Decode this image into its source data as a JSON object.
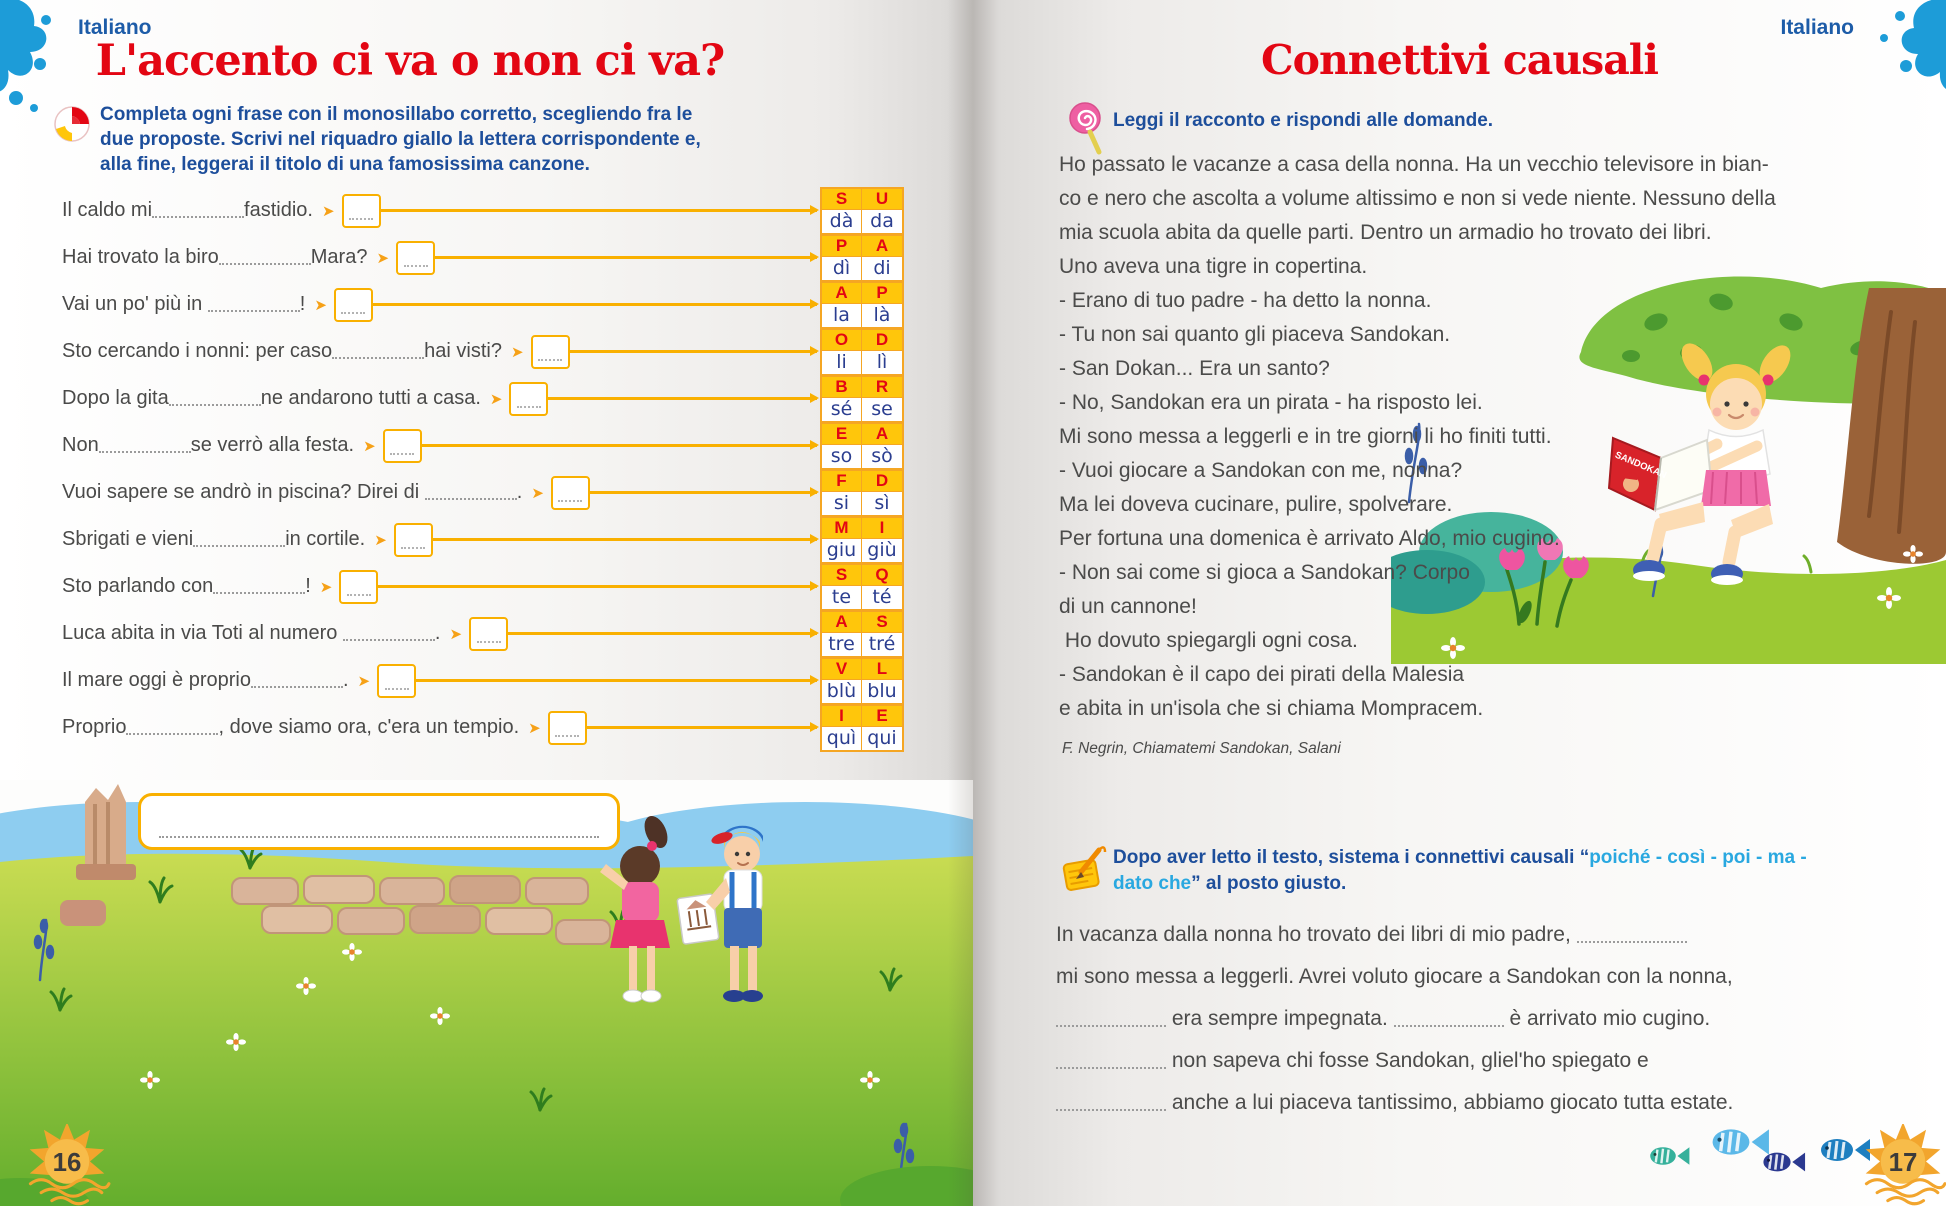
{
  "colors": {
    "red": "#e30613",
    "blue": "#1d4e9b",
    "cyan": "#29a8e0",
    "yellow": "#f9b000",
    "yellow_fill": "#ffc60b",
    "word_blue": "#2b3e90",
    "text_gray": "#4a4a49",
    "splat_blue": "#1d9cd8"
  },
  "left_page": {
    "corner_label": "Italiano",
    "page_number": "16",
    "title": "L'accento ci va o non ci va?",
    "instruction": "Completa ogni frase con il monosillabo corretto, scegliendo fra le due proposte. Scrivi nel riquadro giallo la lettera corrispondente e, alla fine, leggerai il titolo di una famosissima canzone.",
    "exercises": [
      {
        "parts": [
          "Il caldo mi",
          "fastidio."
        ],
        "letters": [
          "S",
          "U"
        ],
        "words": [
          "dà",
          "da"
        ]
      },
      {
        "parts": [
          "Hai trovato la biro",
          "Mara?"
        ],
        "letters": [
          "P",
          "A"
        ],
        "words": [
          "dì",
          "di"
        ]
      },
      {
        "parts": [
          "Vai un po' più in ",
          "!"
        ],
        "letters": [
          "A",
          "P"
        ],
        "words": [
          "la",
          "là"
        ]
      },
      {
        "parts": [
          "Sto cercando i nonni: per caso",
          "hai visti?"
        ],
        "letters": [
          "O",
          "D"
        ],
        "words": [
          "li",
          "lì"
        ]
      },
      {
        "parts": [
          "Dopo la gita",
          "ne andarono tutti a casa."
        ],
        "letters": [
          "B",
          "R"
        ],
        "words": [
          "sé",
          "se"
        ]
      },
      {
        "parts": [
          "Non",
          "se verrò alla festa."
        ],
        "letters": [
          "E",
          "A"
        ],
        "words": [
          "so",
          "sò"
        ]
      },
      {
        "parts": [
          "Vuoi sapere se andrò in piscina? Direi di ",
          "."
        ],
        "letters": [
          "F",
          "D"
        ],
        "words": [
          "si",
          "sì"
        ]
      },
      {
        "parts": [
          "Sbrigati e vieni",
          "in cortile."
        ],
        "letters": [
          "M",
          "I"
        ],
        "words": [
          "giu",
          "giù"
        ]
      },
      {
        "parts": [
          "Sto parlando con",
          "!"
        ],
        "letters": [
          "S",
          "Q"
        ],
        "words": [
          "te",
          "té"
        ]
      },
      {
        "parts": [
          "Luca abita in via Toti al numero ",
          "."
        ],
        "letters": [
          "A",
          "S"
        ],
        "words": [
          "tre",
          "tré"
        ]
      },
      {
        "parts": [
          "Il mare oggi è proprio",
          "."
        ],
        "letters": [
          "V",
          "L"
        ],
        "words": [
          "blù",
          "blu"
        ]
      },
      {
        "parts": [
          "Proprio",
          ", dove siamo ora, c'era un tempio."
        ],
        "letters": [
          "I",
          "E"
        ],
        "words": [
          "quì",
          "qui"
        ]
      }
    ]
  },
  "right_page": {
    "corner_label": "Italiano",
    "page_number": "17",
    "title": "Connettivi causali",
    "instruction1": "Leggi il racconto e rispondi alle domande.",
    "story_lines": [
      "Ho passato le vacanze a casa della nonna. Ha un vecchio televisore in bian-",
      "co e nero che ascolta a volume altissimo e non si vede niente. Nessuno della",
      "mia scuola abita da quelle parti. Dentro un armadio ho trovato dei libri.",
      "Uno aveva una tigre in copertina.",
      "- Erano di tuo padre - ha detto la nonna.",
      "- Tu non sai quanto gli piaceva Sandokan.",
      "- San Dokan... Era un santo?",
      "- No, Sandokan era un pirata - ha risposto lei.",
      "Mi sono messa a leggerli e in tre giorni li ho finiti tutti.",
      "- Vuoi giocare a Sandokan con me, nonna?",
      "Ma lei doveva cucinare, pulire, spolverare.",
      "Per fortuna una domenica è arrivato Aldo, mio cugino.",
      "- Non sai come si gioca a Sandokan? Corpo",
      "di un cannone!",
      " Ho dovuto spiegargli ogni cosa.",
      "- Sandokan è il capo dei pirati della Malesia",
      "e abita in un'isola che si chiama Mompracem."
    ],
    "attribution": "F. Negrin, Chiamatemi Sandokan, Salani",
    "instruction2": {
      "prefix": "Dopo aver letto il testo, sistema i connettivi causali “",
      "connectives": "poiché - così - poi - ma - dato che",
      "suffix": "” al posto giusto."
    },
    "fill_lines": [
      {
        "parts": [
          "In vacanza dalla nonna ho trovato dei libri di mio padre, ",
          ""
        ]
      },
      {
        "parts": [
          "mi sono messa a leggerli. Avrei voluto giocare a Sandokan con la nonna,"
        ]
      },
      {
        "parts": [
          "",
          " era sempre impegnata. ",
          " è arrivato mio cugino."
        ]
      },
      {
        "parts": [
          "",
          " non sapeva chi fosse Sandokan, gliel'ho spiegato e"
        ]
      },
      {
        "parts": [
          "",
          " anche a lui piaceva tantissimo, abbiamo giocato tutta estate."
        ]
      }
    ],
    "book_cover_title": "SANDOKAN"
  }
}
